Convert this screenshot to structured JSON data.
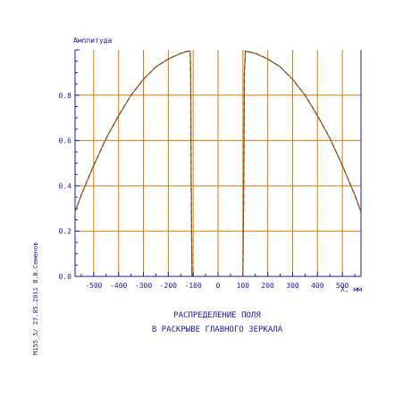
{
  "chart_data": {
    "type": "line",
    "title": "",
    "ylabel": "Амплитуда",
    "xlabel": "X, мм",
    "xlim": [
      -575,
      575
    ],
    "ylim": [
      0,
      1.0
    ],
    "xticks": [
      -500,
      -400,
      -300,
      -200,
      -100,
      0,
      100,
      200,
      300,
      400,
      500
    ],
    "yticks": [
      0.0,
      0.2,
      0.4,
      0.6,
      0.8
    ],
    "ytick_labels": [
      "0.0",
      "0.2",
      "0.4",
      "0.6",
      "0.8"
    ],
    "grid": true,
    "caption_line1": "РАСПРЕДЕЛЕНИЕ ПОЛЯ",
    "caption_line2": "В РАСКРЫВЕ ГЛАВНОГО ЗЕРКАЛА",
    "side_note": "M155_5/   27.05.2011   В.В.Семенов",
    "colors": {
      "grid": "#e07c00",
      "axis": "#1a1aa6",
      "text": "#1a1aa6",
      "curve_red": "#d42020",
      "curve_green": "#1c9a1c"
    },
    "series": [
      {
        "x": [
          -575,
          -550,
          -500,
          -450,
          -400,
          -350,
          -300,
          -250,
          -200,
          -150,
          -120,
          -112,
          -110,
          -108,
          -105
        ],
        "y": [
          0.285,
          0.36,
          0.49,
          0.61,
          0.71,
          0.8,
          0.87,
          0.925,
          0.96,
          0.985,
          0.995,
          0.995,
          0.9,
          0.45,
          0.0
        ]
      },
      {
        "x": [
          100,
          104,
          106,
          110,
          130,
          150,
          200,
          250,
          300,
          350,
          400,
          450,
          500,
          550,
          575
        ],
        "y": [
          0.0,
          0.45,
          0.9,
          0.995,
          0.99,
          0.985,
          0.96,
          0.925,
          0.87,
          0.8,
          0.71,
          0.61,
          0.49,
          0.36,
          0.285
        ]
      }
    ]
  }
}
